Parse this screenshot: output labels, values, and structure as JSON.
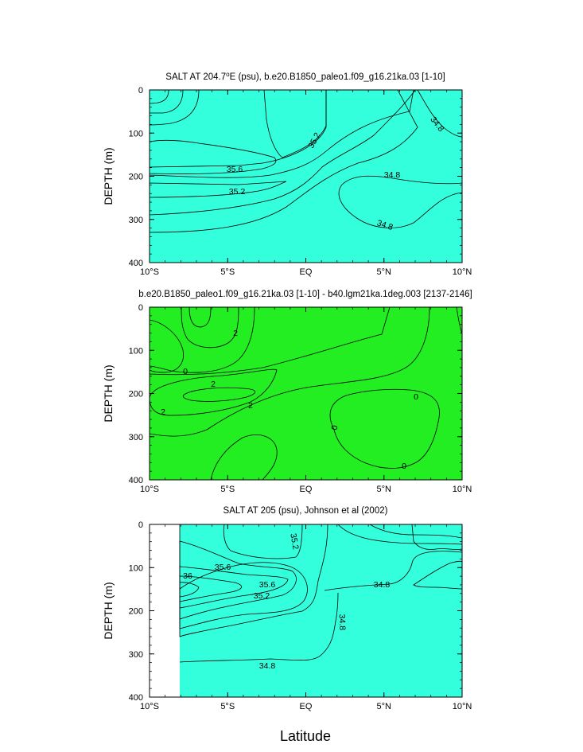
{
  "colors": {
    "cyan_bright": "#00FFFF",
    "cyan": "#33FFDD",
    "green": "#22EE22",
    "green_mid": "#55EE22",
    "yellowgreen": "#99FF33",
    "yellow": "#FFFF22",
    "gold": "#FFCC44",
    "orange": "#FFAA33"
  },
  "figure": {
    "xlabel": "Latitude"
  },
  "chart_data": [
    {
      "type": "contour",
      "title_main": "SALT AT 204.7",
      "title_deg": "o",
      "title_rest": "E (psu), b.e20.B1850_paleo1.f09_g16.21ka.03 [1-10]",
      "ylabel": "DEPTH (m)",
      "x_ticks": [
        "10°S",
        "5°S",
        "EQ",
        "5°N",
        "10°N"
      ],
      "y_ticks": [
        "0",
        "100",
        "200",
        "300",
        "400"
      ],
      "xlim": [
        -10,
        10
      ],
      "ylim": [
        0,
        400
      ],
      "contour_labels": [
        "35.6",
        "35.2",
        "35.2",
        "34.8",
        "34.8",
        "34.8"
      ]
    },
    {
      "type": "contour",
      "title": "b.e20.B1850_paleo1.f09_g16.21ka.03 [1-10] - b40.lgm21ka.1deg.003 [2137-2146]",
      "ylabel": "DEPTH (m)",
      "x_ticks": [
        "10°S",
        "5°S",
        "EQ",
        "5°N",
        "10°N"
      ],
      "y_ticks": [
        "0",
        "100",
        "200",
        "300",
        "400"
      ],
      "xlim": [
        -10,
        10
      ],
      "ylim": [
        0,
        400
      ],
      "contour_labels": [
        "2",
        "0",
        "2",
        "2",
        "2",
        "0",
        "0",
        "0"
      ]
    },
    {
      "type": "contour",
      "title": "SALT AT 205 (psu), Johnson et al (2002)",
      "ylabel": "DEPTH (m)",
      "x_ticks": [
        "10°S",
        "5°S",
        "EQ",
        "5°N",
        "10°N"
      ],
      "y_ticks": [
        "0",
        "100",
        "200",
        "300",
        "400"
      ],
      "xlim": [
        -10,
        10
      ],
      "ylim": [
        0,
        400
      ],
      "contour_labels": [
        "35.2",
        "35.6",
        "36",
        "35.6",
        "35.2",
        "34.8",
        "34.8",
        "34.8"
      ]
    }
  ]
}
